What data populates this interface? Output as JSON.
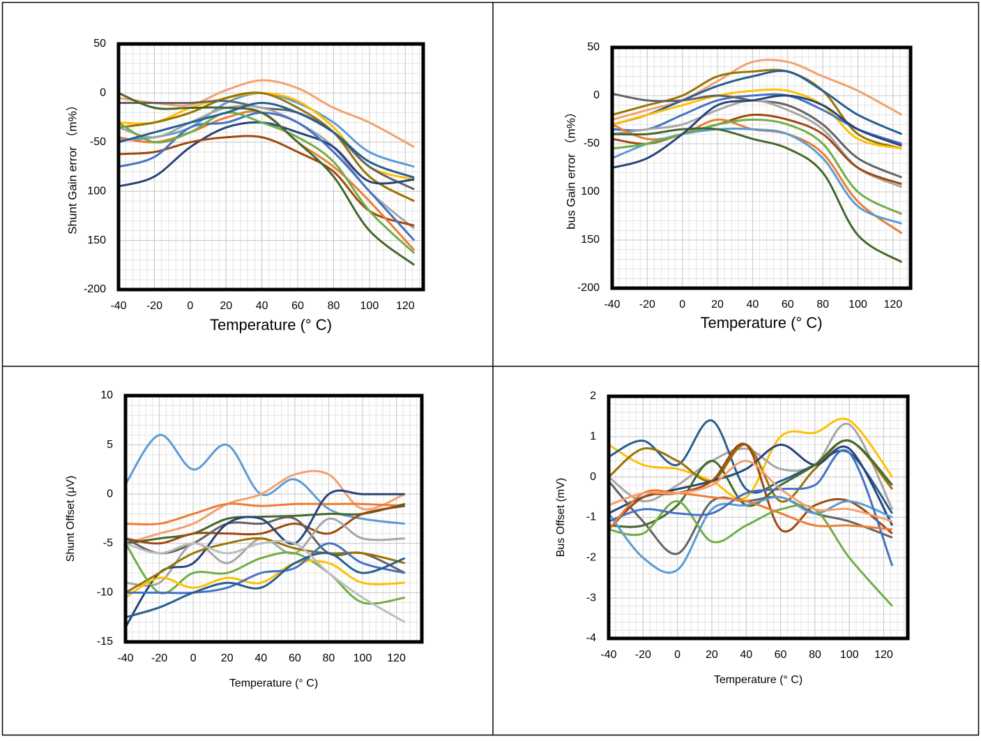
{
  "chart_data": [
    {
      "type": "line",
      "x_label": "Temperature (° C)",
      "y_label": "Shunt Gain error （m%）",
      "x": [
        -40,
        -20,
        0,
        20,
        40,
        60,
        80,
        100,
        125
      ],
      "xlim": [
        -40,
        130
      ],
      "xticks": [
        -40,
        -20,
        0,
        20,
        40,
        60,
        80,
        100,
        120
      ],
      "ylim": [
        -200,
        50
      ],
      "yticks": [
        -200,
        {
          "value": -150,
          "label": "150"
        },
        {
          "value": -100,
          "label": "100"
        },
        -50,
        0,
        50
      ],
      "grid": true,
      "series": [
        {
          "color": "#f4a06e",
          "values": [
            -5,
            -10,
            -12,
            3,
            13,
            5,
            -15,
            -30,
            -55
          ]
        },
        {
          "color": "#5b9bd5",
          "values": [
            -48,
            -45,
            -35,
            -10,
            0,
            -10,
            -30,
            -60,
            -75
          ]
        },
        {
          "color": "#ffc000",
          "values": [
            -30,
            -30,
            -15,
            -5,
            0,
            -8,
            -35,
            -75,
            -88
          ]
        },
        {
          "color": "#997300",
          "values": [
            -35,
            -30,
            -20,
            -5,
            0,
            -15,
            -40,
            -85,
            -110
          ]
        },
        {
          "color": "#636363",
          "values": [
            -10,
            -10,
            -10,
            -8,
            -15,
            -20,
            -40,
            -75,
            -98
          ]
        },
        {
          "color": "#a5a5a5",
          "values": [
            -35,
            -45,
            -30,
            -15,
            -15,
            -30,
            -55,
            -100,
            -138
          ]
        },
        {
          "color": "#264478",
          "values": [
            -95,
            -85,
            -55,
            -35,
            -30,
            -40,
            -55,
            -90,
            -88
          ]
        },
        {
          "color": "#9e480e",
          "values": [
            -62,
            -60,
            -50,
            -45,
            -45,
            -60,
            -80,
            -120,
            -135
          ]
        },
        {
          "color": "#ed7d31",
          "values": [
            -45,
            -50,
            -40,
            -25,
            -20,
            -50,
            -75,
            -110,
            -160
          ]
        },
        {
          "color": "#4472c4",
          "values": [
            -75,
            -65,
            -35,
            -30,
            -20,
            -30,
            -60,
            -100,
            -150
          ]
        },
        {
          "color": "#70ad47",
          "values": [
            -30,
            -50,
            -40,
            -20,
            -30,
            -45,
            -70,
            -120,
            -163
          ]
        },
        {
          "color": "#43682b",
          "values": [
            0,
            -15,
            -15,
            -15,
            -20,
            -50,
            -85,
            -140,
            -175
          ]
        },
        {
          "color": "#255e91",
          "values": [
            -50,
            -40,
            -30,
            -20,
            -10,
            -20,
            -40,
            -70,
            -86
          ]
        }
      ]
    },
    {
      "type": "line",
      "x_label": "Temperature (° C)",
      "y_label": "bus Gain error （m%）",
      "x": [
        -40,
        -20,
        0,
        20,
        40,
        60,
        80,
        100,
        125
      ],
      "xlim": [
        -40,
        130
      ],
      "xticks": [
        -40,
        -20,
        0,
        20,
        40,
        60,
        80,
        100,
        120
      ],
      "ylim": [
        -200,
        50
      ],
      "yticks": [
        -200,
        {
          "value": -150,
          "label": "150"
        },
        {
          "value": -100,
          "label": "100"
        },
        -50,
        0,
        50
      ],
      "grid": true,
      "series": [
        {
          "color": "#f4a06e",
          "values": [
            -25,
            -15,
            -5,
            15,
            35,
            35,
            20,
            5,
            -20
          ]
        },
        {
          "color": "#997300",
          "values": [
            -20,
            -10,
            0,
            20,
            25,
            25,
            5,
            -40,
            -55
          ]
        },
        {
          "color": "#255e91",
          "values": [
            -30,
            -20,
            -5,
            10,
            20,
            25,
            5,
            -20,
            -40
          ]
        },
        {
          "color": "#ffc000",
          "values": [
            -30,
            -20,
            -10,
            0,
            5,
            5,
            -10,
            -45,
            -55
          ]
        },
        {
          "color": "#4472c4",
          "values": [
            -35,
            -35,
            -20,
            -5,
            0,
            0,
            -15,
            -35,
            -50
          ]
        },
        {
          "color": "#636363",
          "values": [
            2,
            -5,
            -5,
            0,
            -5,
            -10,
            -30,
            -65,
            -85
          ]
        },
        {
          "color": "#a5a5a5",
          "values": [
            -40,
            -35,
            -30,
            -15,
            -5,
            -15,
            -35,
            -75,
            -95
          ]
        },
        {
          "color": "#9e480e",
          "values": [
            -45,
            -50,
            -40,
            -30,
            -20,
            -25,
            -40,
            -75,
            -92
          ]
        },
        {
          "color": "#ed7d31",
          "values": [
            -30,
            -45,
            -40,
            -25,
            -35,
            -40,
            -60,
            -110,
            -143
          ]
        },
        {
          "color": "#5b9bd5",
          "values": [
            -65,
            -50,
            -40,
            -35,
            -35,
            -40,
            -65,
            -115,
            -133
          ]
        },
        {
          "color": "#70ad47",
          "values": [
            -55,
            -50,
            -40,
            -30,
            -25,
            -30,
            -50,
            -100,
            -123
          ]
        },
        {
          "color": "#43682b",
          "values": [
            -40,
            -40,
            -35,
            -35,
            -45,
            -55,
            -80,
            -145,
            -173
          ]
        },
        {
          "color": "#264478",
          "values": [
            -75,
            -65,
            -40,
            -10,
            -5,
            0,
            -10,
            -35,
            -52
          ]
        }
      ]
    },
    {
      "type": "line",
      "x_label": "Temperature (° C)",
      "y_label": "Shunt Offset (μV)",
      "x": [
        -40,
        -20,
        0,
        20,
        40,
        60,
        80,
        100,
        125
      ],
      "xlim": [
        -40,
        135
      ],
      "xticks": [
        -40,
        -20,
        0,
        20,
        40,
        60,
        80,
        100,
        120
      ],
      "ylim": [
        -15,
        10
      ],
      "yticks": [
        -15,
        -10,
        -5,
        0,
        5,
        10
      ],
      "grid": true,
      "series": [
        {
          "color": "#5b9bd5",
          "values": [
            1,
            6,
            2.5,
            5,
            0,
            1.5,
            -1.5,
            -2.5,
            -3
          ]
        },
        {
          "color": "#f4a06e",
          "values": [
            -5,
            -4,
            -3,
            -1,
            0,
            2,
            2,
            -1.5,
            0
          ]
        },
        {
          "color": "#ed7d31",
          "values": [
            -3,
            -3,
            -2,
            -1,
            -1.2,
            -1,
            -1,
            -1,
            -1.2
          ]
        },
        {
          "color": "#43682b",
          "values": [
            -5,
            -4.5,
            -4,
            -2.5,
            -2.3,
            -2.2,
            -2,
            -2,
            -1
          ]
        },
        {
          "color": "#9e480e",
          "values": [
            -4.5,
            -5,
            -4,
            -4,
            -4,
            -3,
            -4,
            -2,
            -1.2
          ]
        },
        {
          "color": "#636363",
          "values": [
            -4.5,
            -6,
            -5,
            -3,
            -3,
            -2.5,
            -6,
            -6,
            -8
          ]
        },
        {
          "color": "#a5a5a5",
          "values": [
            -9,
            -9,
            -5,
            -7,
            -4.5,
            -6,
            -2.5,
            -4.5,
            -4.5
          ]
        },
        {
          "color": "#264478",
          "values": [
            -13.5,
            -8,
            -7,
            -3,
            -2.5,
            -5,
            0,
            0,
            0
          ]
        },
        {
          "color": "#997300",
          "values": [
            -10,
            -8,
            -6,
            -5,
            -4.5,
            -5.5,
            -6,
            -6,
            -7
          ]
        },
        {
          "color": "#70ad47",
          "values": [
            -5,
            -10,
            -8,
            -8,
            -6.5,
            -6,
            -8,
            -11,
            -10.5
          ]
        },
        {
          "color": "#ffc000",
          "values": [
            -10.5,
            -8.5,
            -9.5,
            -8.5,
            -9,
            -7,
            -7,
            -9,
            -9
          ]
        },
        {
          "color": "#4472c4",
          "values": [
            -10,
            -10,
            -10,
            -9.5,
            -8,
            -7.5,
            -5,
            -7,
            -8
          ]
        },
        {
          "color": "#255e91",
          "values": [
            -12.5,
            -11.5,
            -10,
            -9,
            -9.5,
            -7,
            -6,
            -8,
            -6.5
          ]
        },
        {
          "color": "#bdbdbd",
          "values": [
            -5,
            -6,
            -5,
            -6,
            -5,
            -5,
            -8,
            -10.5,
            -13
          ]
        }
      ]
    },
    {
      "type": "line",
      "x_label": "Temperature (° C)",
      "y_label": "Bus Offset (mV)",
      "x": [
        -40,
        -20,
        0,
        20,
        40,
        60,
        80,
        100,
        125
      ],
      "xlim": [
        -40,
        134
      ],
      "xticks": [
        -40,
        -20,
        0,
        20,
        40,
        60,
        80,
        100,
        120
      ],
      "ylim": [
        -4,
        2
      ],
      "yticks": [
        -4,
        -3,
        -2,
        -1,
        0,
        1,
        2
      ],
      "grid": true,
      "series": [
        {
          "color": "#ffc000",
          "values": [
            0.8,
            0.3,
            0.2,
            -0.1,
            -0.5,
            1,
            1.1,
            1.4,
            0
          ]
        },
        {
          "color": "#a5a5a5",
          "values": [
            0,
            -0.6,
            -0.2,
            0.4,
            0.7,
            0.2,
            0.3,
            1.3,
            -0.8
          ]
        },
        {
          "color": "#255e91",
          "values": [
            0.5,
            0.9,
            0.3,
            1.4,
            -0.3,
            -0.1,
            0.3,
            0.6,
            -0.9
          ]
        },
        {
          "color": "#997300",
          "values": [
            0,
            0.7,
            0.4,
            -0.1,
            0.8,
            -0.6,
            0.2,
            0.9,
            -0.3
          ]
        },
        {
          "color": "#264478",
          "values": [
            -0.9,
            -0.5,
            -0.3,
            -0.1,
            0.2,
            0.8,
            0.3,
            0.7,
            -1.2
          ]
        },
        {
          "color": "#43682b",
          "values": [
            -1.2,
            -1.2,
            -0.7,
            0.4,
            -0.7,
            -0.2,
            0.3,
            0.9,
            -0.2
          ]
        },
        {
          "color": "#9e480e",
          "values": [
            -1.3,
            -0.5,
            -0.4,
            -0.1,
            0.8,
            -1.3,
            -0.7,
            -0.6,
            -1.4
          ]
        },
        {
          "color": "#636363",
          "values": [
            -0.1,
            -1.1,
            -1.9,
            -0.6,
            -0.6,
            -0.5,
            -0.9,
            -1.1,
            -1.5
          ]
        },
        {
          "color": "#5b9bd5",
          "values": [
            -0.9,
            -2,
            -2.3,
            -0.8,
            -0.7,
            -0.5,
            -0.9,
            -0.6,
            -1
          ]
        },
        {
          "color": "#70ad47",
          "values": [
            -1.3,
            -1.4,
            -0.6,
            -1.6,
            -1.2,
            -0.8,
            -0.8,
            -2,
            -3.2
          ]
        },
        {
          "color": "#4472c4",
          "values": [
            -1.1,
            -0.8,
            -0.9,
            -0.9,
            -0.4,
            -0.3,
            -0.2,
            0.6,
            -2.2
          ]
        },
        {
          "color": "#ed7d31",
          "values": [
            -1.3,
            -0.4,
            -0.4,
            -0.5,
            -0.6,
            -0.9,
            -1.2,
            -1.2,
            -1.3
          ]
        },
        {
          "color": "#f4a06e",
          "values": [
            -0.7,
            -0.4,
            -0.4,
            -0.2,
            0.4,
            -0.3,
            -0.8,
            -0.8,
            -1.1
          ]
        }
      ]
    }
  ]
}
